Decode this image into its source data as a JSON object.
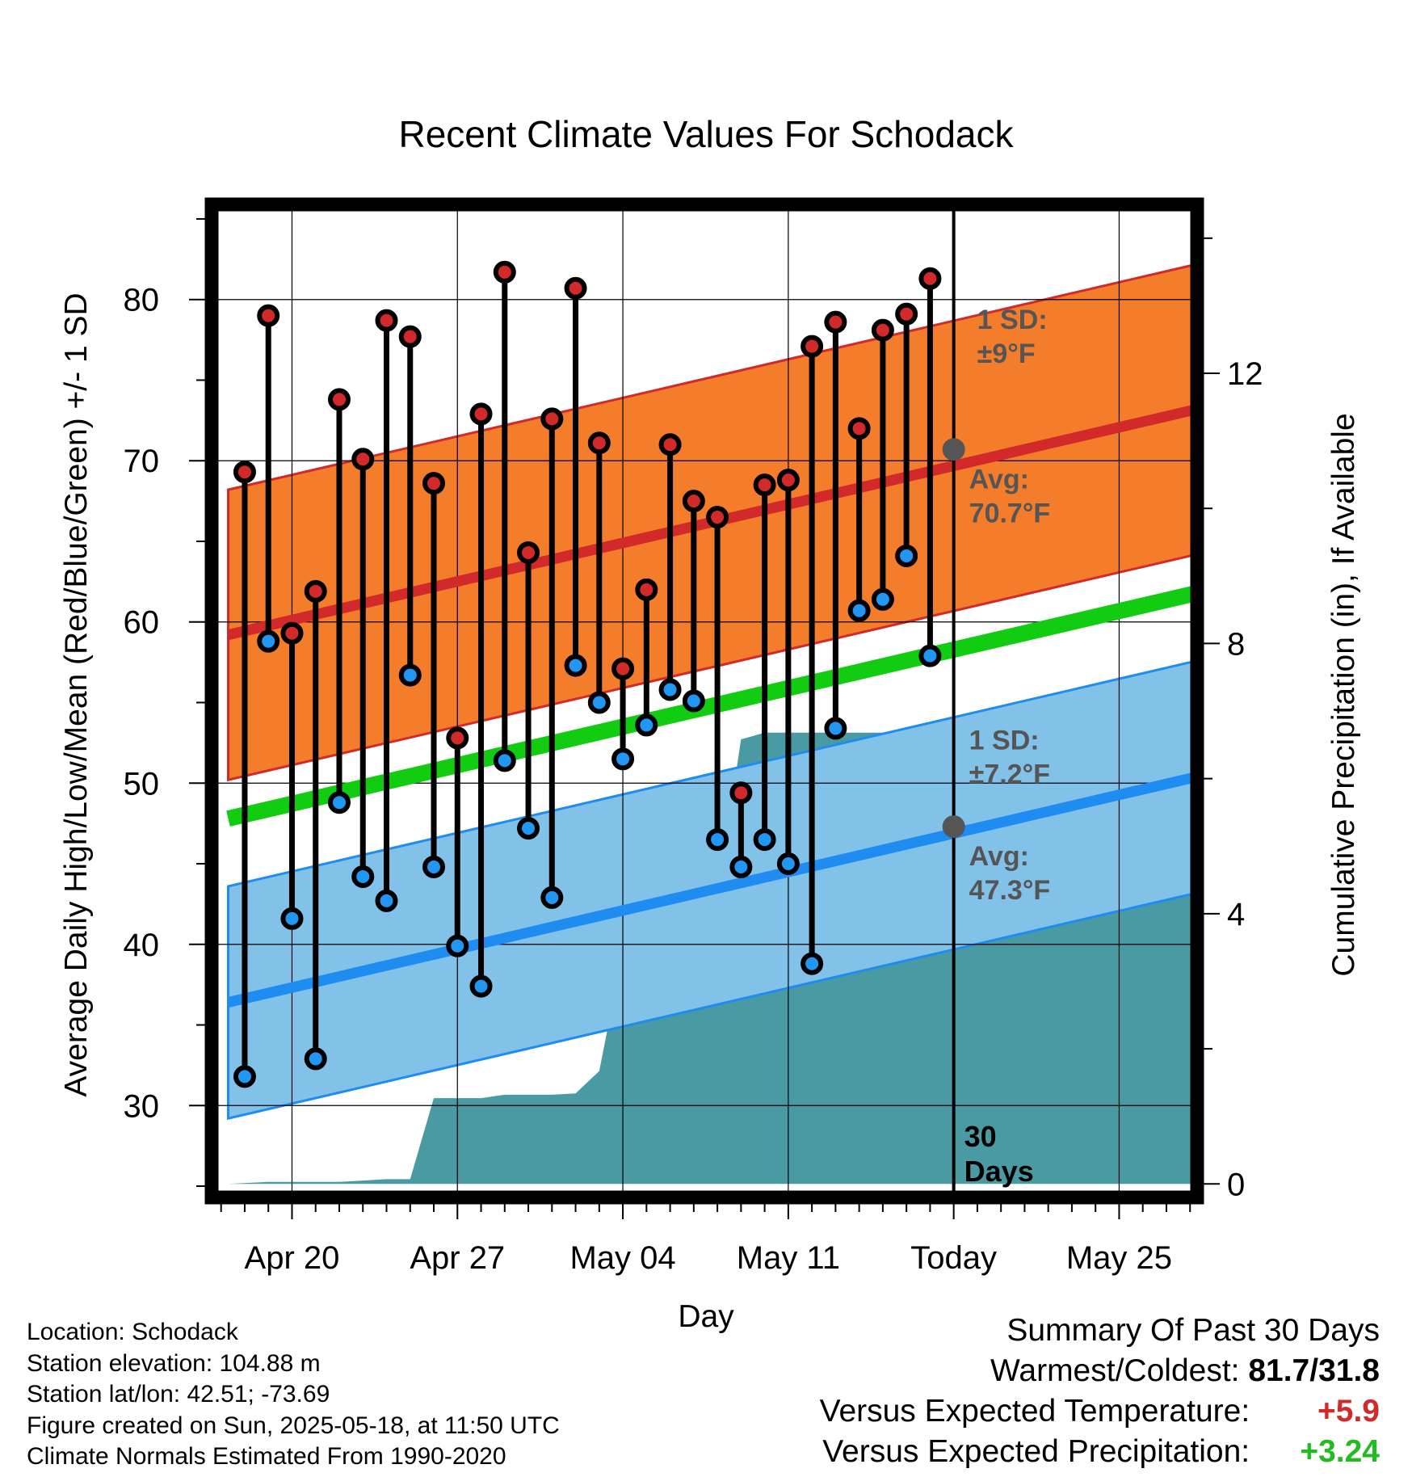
{
  "chart_data": {
    "type": "line",
    "title": "Recent Climate Values For Schodack",
    "xlabel": "Day",
    "ylabel": "Average Daily High/Low/Mean (Red/Blue/Green) +/- 1 SD",
    "y2label": "Cumulative Precipitation (in), If Available",
    "ylim": [
      24.3,
      85.9
    ],
    "y2lim": [
      -0.2,
      14.5
    ],
    "xlim": [
      -3.4,
      38.3
    ],
    "y_ticks": [
      30,
      40,
      50,
      60,
      70,
      80
    ],
    "y2_ticks": [
      0,
      4,
      8,
      12
    ],
    "x_ticks": [
      {
        "x": 0,
        "label": "Apr 20"
      },
      {
        "x": 7,
        "label": "Apr 27"
      },
      {
        "x": 14,
        "label": "May 04"
      },
      {
        "x": 21,
        "label": "May 11"
      },
      {
        "x": 28,
        "label": "Today"
      },
      {
        "x": 35,
        "label": "May 25"
      }
    ],
    "today_x": 28,
    "today_label": [
      "30",
      "Days"
    ],
    "daily": [
      {
        "x": -2,
        "high": 69.3,
        "low": 31.8
      },
      {
        "x": -1,
        "high": 79.0,
        "low": 58.8
      },
      {
        "x": 0,
        "high": 59.3,
        "low": 41.6
      },
      {
        "x": 1,
        "high": 61.9,
        "low": 32.9
      },
      {
        "x": 2,
        "high": 73.8,
        "low": 48.8
      },
      {
        "x": 3,
        "high": 70.1,
        "low": 44.2
      },
      {
        "x": 4,
        "high": 78.7,
        "low": 42.7
      },
      {
        "x": 5,
        "high": 77.7,
        "low": 56.7
      },
      {
        "x": 6,
        "high": 68.6,
        "low": 44.8
      },
      {
        "x": 7,
        "high": 52.8,
        "low": 39.9
      },
      {
        "x": 8,
        "high": 72.9,
        "low": 37.4
      },
      {
        "x": 9,
        "high": 81.7,
        "low": 51.4
      },
      {
        "x": 10,
        "high": 64.3,
        "low": 47.2
      },
      {
        "x": 11,
        "high": 72.6,
        "low": 42.9
      },
      {
        "x": 12,
        "high": 80.7,
        "low": 57.3
      },
      {
        "x": 13,
        "high": 71.1,
        "low": 55.0
      },
      {
        "x": 14,
        "high": 57.1,
        "low": 51.5
      },
      {
        "x": 15,
        "high": 62.0,
        "low": 53.6
      },
      {
        "x": 16,
        "high": 71.0,
        "low": 55.8
      },
      {
        "x": 17,
        "high": 67.5,
        "low": 55.1
      },
      {
        "x": 18,
        "high": 66.5,
        "low": 46.5
      },
      {
        "x": 19,
        "high": 49.4,
        "low": 44.8
      },
      {
        "x": 20,
        "high": 68.5,
        "low": 46.5
      },
      {
        "x": 21,
        "high": 68.8,
        "low": 45.0
      },
      {
        "x": 22,
        "high": 77.1,
        "low": 38.8
      },
      {
        "x": 23,
        "high": 78.6,
        "low": 53.4
      },
      {
        "x": 24,
        "high": 72.0,
        "low": 60.7
      },
      {
        "x": 25,
        "high": 78.1,
        "low": 61.4
      },
      {
        "x": 26,
        "high": 79.1,
        "low": 64.1
      },
      {
        "x": 27,
        "high": 81.3,
        "low": 57.9
      }
    ],
    "normals": {
      "x": [
        -2.7,
        38.3
      ],
      "high_avg": [
        59.2,
        73.2
      ],
      "high_sd": 9,
      "low_avg": [
        36.4,
        50.4
      ],
      "low_sd": 7.2,
      "mean_avg": [
        47.8,
        61.8
      ]
    },
    "annotations": {
      "high_sd_label": [
        "1 SD:",
        "±9°F"
      ],
      "high_avg_label": [
        "Avg:",
        "70.7°F"
      ],
      "high_avg_today": 70.7,
      "low_sd_label": [
        "1 SD:",
        "±7.2°F"
      ],
      "low_avg_label": [
        "Avg:",
        "47.3°F"
      ],
      "low_avg_today": 47.3
    },
    "precip": {
      "x": [
        -2.7,
        -1,
        0,
        1,
        2,
        3,
        4,
        5,
        6,
        7,
        8,
        9,
        10,
        11,
        12,
        13,
        14,
        15,
        16,
        17,
        18,
        19,
        20,
        21,
        22,
        23,
        24,
        25,
        26,
        27,
        28,
        38.3
      ],
      "y": [
        0.0,
        0.03,
        0.03,
        0.03,
        0.03,
        0.05,
        0.07,
        0.07,
        1.27,
        1.27,
        1.27,
        1.32,
        1.32,
        1.32,
        1.34,
        1.67,
        3.43,
        3.9,
        4.2,
        4.2,
        4.25,
        6.58,
        6.68,
        6.68,
        6.68,
        6.68,
        6.68,
        6.68,
        6.71,
        6.73,
        6.73,
        6.73
      ]
    },
    "colors": {
      "high_band": "#f47d2c",
      "high_line": "#d2292a",
      "low_band": "#82c1e8",
      "low_line": "#1e8cf0",
      "mean_line": "#11cc11",
      "precip": "#4a9aa4",
      "high_marker": "#d2292a",
      "low_marker": "#2196f3",
      "annotation": "#555555"
    }
  },
  "footer": {
    "location": "Location: Schodack",
    "elevation": "Station elevation: 104.88 m",
    "latlon": "Station lat/lon: 42.51; -73.69",
    "created": "Figure created on Sun, 2025-05-18, at 11:50 UTC",
    "normals": "Climate Normals Estimated From 1990-2020"
  },
  "summary": {
    "title": "Summary Of Past 30 Days",
    "warm_cold_label": "Warmest/Coldest:",
    "warm_cold_value": "81.7/31.8",
    "temp_label": "Versus Expected Temperature:",
    "temp_value": "+5.9",
    "temp_color": "#d2292a",
    "precip_label": "Versus Expected Precipitation:",
    "precip_value": "+3.24",
    "precip_color": "#22bb22"
  }
}
